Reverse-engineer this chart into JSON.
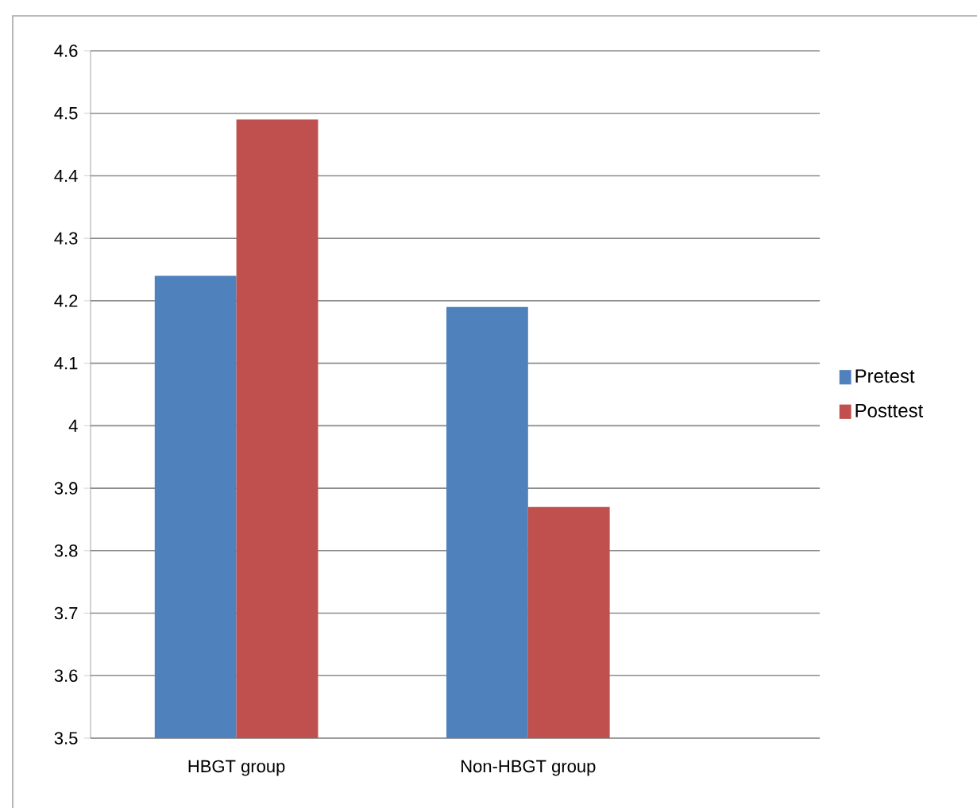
{
  "chart_data": {
    "type": "bar",
    "categories": [
      "HBGT group",
      "Non-HBGT group",
      null
    ],
    "series": [
      {
        "name": "Pretest",
        "color": "#4f81bd",
        "values": [
          4.24,
          4.19,
          null
        ]
      },
      {
        "name": "Posttest",
        "color": "#c0504d",
        "values": [
          4.49,
          3.87,
          null
        ]
      }
    ],
    "ylim": [
      3.5,
      4.6
    ],
    "yticks": [
      3.5,
      3.6,
      3.7,
      3.8,
      3.9,
      4,
      4.1,
      4.2,
      4.3,
      4.4,
      4.5,
      4.6
    ],
    "grid": "y",
    "legend": "right"
  }
}
